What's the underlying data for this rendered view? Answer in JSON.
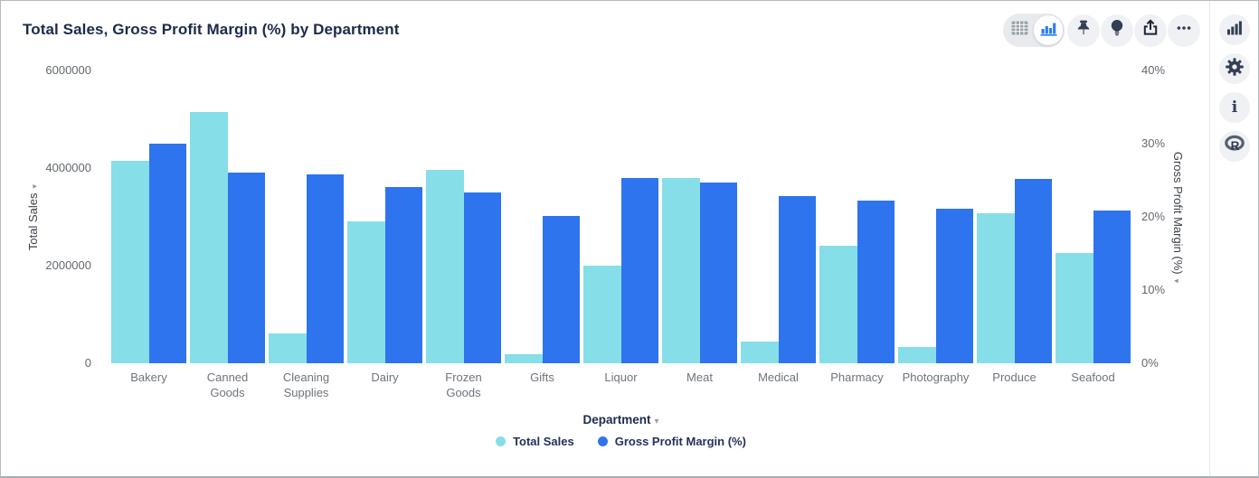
{
  "header": {
    "toolbar": {
      "view_toggle": {
        "options": [
          "table-view",
          "chart-view"
        ],
        "selected": "chart-view"
      },
      "buttons": [
        "pin",
        "insights",
        "export",
        "more-options"
      ]
    }
  },
  "right_rail": {
    "buttons": [
      "chart-type",
      "settings",
      "info",
      "r-logo"
    ],
    "r_logo_letter": "R"
  },
  "colors": {
    "total_sales": "#86DEE9",
    "gross_profit_margin": "#2E74EE",
    "icon_navy": "#333E55",
    "icon_grey": "#98A0A9",
    "icon_blue": "#2D7FF0"
  },
  "chart_data": {
    "type": "bar",
    "title": "Total Sales, Gross Profit Margin (%) by Department",
    "categories": [
      "Bakery",
      "Canned Goods",
      "Cleaning Supplies",
      "Dairy",
      "Frozen Goods",
      "Gifts",
      "Liquor",
      "Meat",
      "Medical",
      "Pharmacy",
      "Photography",
      "Produce",
      "Seafood"
    ],
    "series": [
      {
        "name": "Total Sales",
        "axis": "left",
        "color": "#86DEE9",
        "values": [
          4150000,
          5150000,
          620000,
          2900000,
          3970000,
          190000,
          2000000,
          3800000,
          440000,
          2410000,
          330000,
          3070000,
          2260000
        ]
      },
      {
        "name": "Gross Profit Margin (%)",
        "axis": "right",
        "color": "#2E74EE",
        "values": [
          30.0,
          26.0,
          25.8,
          24.1,
          23.4,
          20.1,
          25.3,
          24.7,
          22.8,
          22.2,
          21.1,
          25.2,
          20.9
        ]
      }
    ],
    "left_axis": {
      "label": "Total Sales",
      "ticks": [
        "0",
        "2000000",
        "4000000",
        "6000000"
      ],
      "min": 0,
      "max": 6000000
    },
    "right_axis": {
      "label": "Gross Profit Margin (%)",
      "ticks": [
        "0%",
        "10%",
        "20%",
        "30%",
        "40%"
      ],
      "min": 0,
      "max": 40
    },
    "xlabel": "Department",
    "legend": [
      "Total Sales",
      "Gross Profit Margin (%)"
    ],
    "legend_position": "bottom",
    "grid": false
  }
}
